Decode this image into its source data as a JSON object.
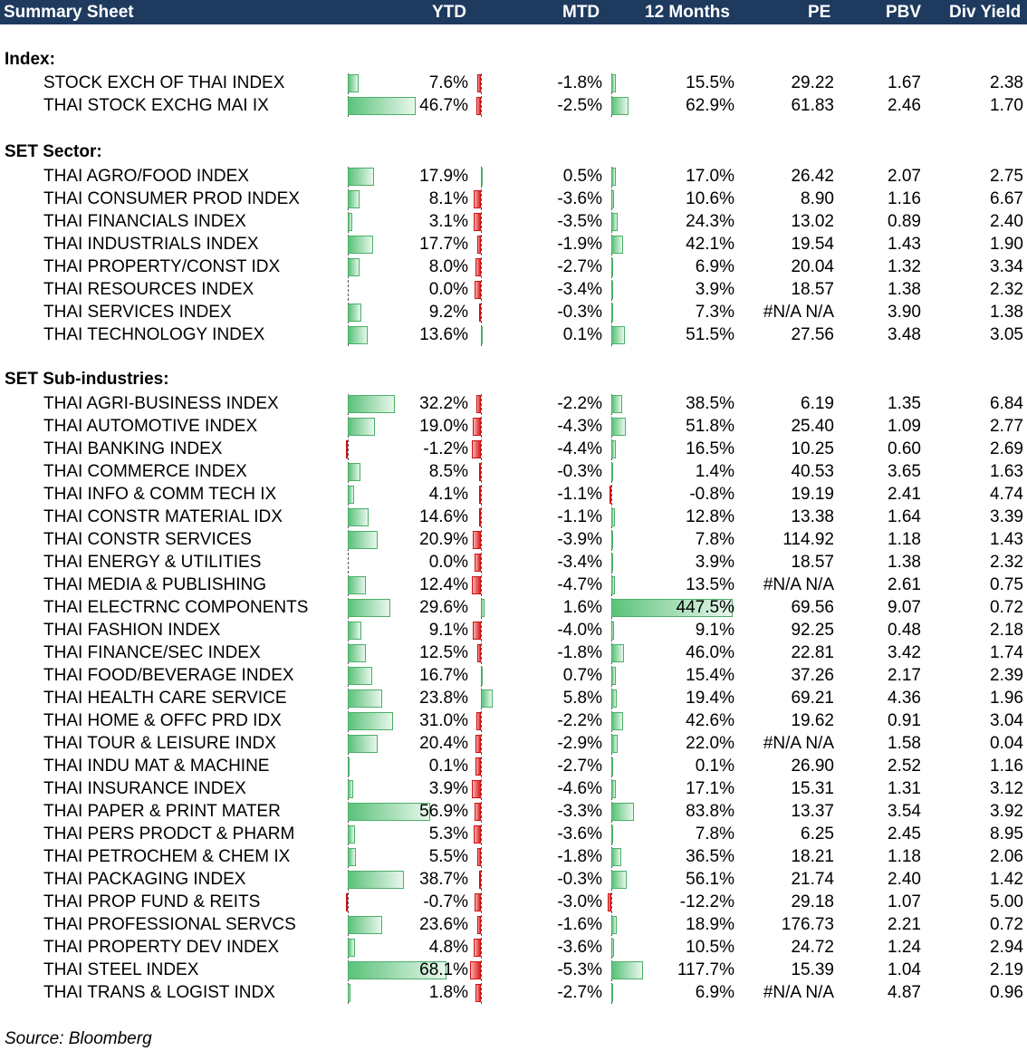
{
  "header": {
    "title": "Summary Sheet",
    "columns": [
      "YTD",
      "MTD",
      "12 Months",
      "PE",
      "PBV",
      "Div Yield"
    ]
  },
  "sections": [
    {
      "title": "Index:",
      "rows": [
        {
          "name": "STOCK EXCH OF THAI INDEX",
          "ytd": "7.6%",
          "mtd": "-1.8%",
          "m12": "15.5%",
          "pe": "29.22",
          "pbv": "1.67",
          "dy": "2.38"
        },
        {
          "name": "THAI STOCK EXCHG MAI IX",
          "ytd": "46.7%",
          "mtd": "-2.5%",
          "m12": "62.9%",
          "pe": "61.83",
          "pbv": "2.46",
          "dy": "1.70"
        }
      ]
    },
    {
      "title": "SET Sector:",
      "rows": [
        {
          "name": "THAI AGRO/FOOD INDEX",
          "ytd": "17.9%",
          "mtd": "0.5%",
          "m12": "17.0%",
          "pe": "26.42",
          "pbv": "2.07",
          "dy": "2.75"
        },
        {
          "name": "THAI CONSUMER PROD INDEX",
          "ytd": "8.1%",
          "mtd": "-3.6%",
          "m12": "10.6%",
          "pe": "8.90",
          "pbv": "1.16",
          "dy": "6.67"
        },
        {
          "name": "THAI FINANCIALS INDEX",
          "ytd": "3.1%",
          "mtd": "-3.5%",
          "m12": "24.3%",
          "pe": "13.02",
          "pbv": "0.89",
          "dy": "2.40"
        },
        {
          "name": "THAI INDUSTRIALS INDEX",
          "ytd": "17.7%",
          "mtd": "-1.9%",
          "m12": "42.1%",
          "pe": "19.54",
          "pbv": "1.43",
          "dy": "1.90"
        },
        {
          "name": "THAI PROPERTY/CONST IDX",
          "ytd": "8.0%",
          "mtd": "-2.7%",
          "m12": "6.9%",
          "pe": "20.04",
          "pbv": "1.32",
          "dy": "3.34"
        },
        {
          "name": "THAI RESOURCES INDEX",
          "ytd": "0.0%",
          "mtd": "-3.4%",
          "m12": "3.9%",
          "pe": "18.57",
          "pbv": "1.38",
          "dy": "2.32"
        },
        {
          "name": "THAI SERVICES INDEX",
          "ytd": "9.2%",
          "mtd": "-0.3%",
          "m12": "7.3%",
          "pe": "#N/A N/A",
          "pbv": "3.90",
          "dy": "1.38"
        },
        {
          "name": "THAI TECHNOLOGY INDEX",
          "ytd": "13.6%",
          "mtd": "0.1%",
          "m12": "51.5%",
          "pe": "27.56",
          "pbv": "3.48",
          "dy": "3.05"
        }
      ]
    },
    {
      "title": "SET Sub-industries:",
      "rows": [
        {
          "name": "THAI AGRI-BUSINESS INDEX",
          "ytd": "32.2%",
          "mtd": "-2.2%",
          "m12": "38.5%",
          "pe": "6.19",
          "pbv": "1.35",
          "dy": "6.84"
        },
        {
          "name": "THAI AUTOMOTIVE INDEX",
          "ytd": "19.0%",
          "mtd": "-4.3%",
          "m12": "51.8%",
          "pe": "25.40",
          "pbv": "1.09",
          "dy": "2.77"
        },
        {
          "name": "THAI BANKING INDEX",
          "ytd": "-1.2%",
          "mtd": "-4.4%",
          "m12": "16.5%",
          "pe": "10.25",
          "pbv": "0.60",
          "dy": "2.69"
        },
        {
          "name": "THAI COMMERCE INDEX",
          "ytd": "8.5%",
          "mtd": "-0.3%",
          "m12": "1.4%",
          "pe": "40.53",
          "pbv": "3.65",
          "dy": "1.63"
        },
        {
          "name": "THAI INFO & COMM TECH IX",
          "ytd": "4.1%",
          "mtd": "-1.1%",
          "m12": "-0.8%",
          "pe": "19.19",
          "pbv": "2.41",
          "dy": "4.74"
        },
        {
          "name": "THAI CONSTR MATERIAL IDX",
          "ytd": "14.6%",
          "mtd": "-1.1%",
          "m12": "12.8%",
          "pe": "13.38",
          "pbv": "1.64",
          "dy": "3.39"
        },
        {
          "name": "THAI CONSTR SERVICES",
          "ytd": "20.9%",
          "mtd": "-3.9%",
          "m12": "7.8%",
          "pe": "114.92",
          "pbv": "1.18",
          "dy": "1.43"
        },
        {
          "name": "THAI ENERGY & UTILITIES",
          "ytd": "0.0%",
          "mtd": "-3.4%",
          "m12": "3.9%",
          "pe": "18.57",
          "pbv": "1.38",
          "dy": "2.32"
        },
        {
          "name": "THAI MEDIA & PUBLISHING",
          "ytd": "12.4%",
          "mtd": "-4.7%",
          "m12": "13.5%",
          "pe": "#N/A N/A",
          "pbv": "2.61",
          "dy": "0.75"
        },
        {
          "name": "THAI ELECTRNC COMPONENTS",
          "ytd": "29.6%",
          "mtd": "1.6%",
          "m12": "447.5%",
          "pe": "69.56",
          "pbv": "9.07",
          "dy": "0.72"
        },
        {
          "name": "THAI FASHION INDEX",
          "ytd": "9.1%",
          "mtd": "-4.0%",
          "m12": "9.1%",
          "pe": "92.25",
          "pbv": "0.48",
          "dy": "2.18"
        },
        {
          "name": "THAI FINANCE/SEC INDEX",
          "ytd": "12.5%",
          "mtd": "-1.8%",
          "m12": "46.0%",
          "pe": "22.81",
          "pbv": "3.42",
          "dy": "1.74"
        },
        {
          "name": "THAI FOOD/BEVERAGE INDEX",
          "ytd": "16.7%",
          "mtd": "0.7%",
          "m12": "15.4%",
          "pe": "37.26",
          "pbv": "2.17",
          "dy": "2.39"
        },
        {
          "name": "THAI HEALTH CARE SERVICE",
          "ytd": "23.8%",
          "mtd": "5.8%",
          "m12": "19.4%",
          "pe": "69.21",
          "pbv": "4.36",
          "dy": "1.96"
        },
        {
          "name": "THAI HOME & OFFC PRD IDX",
          "ytd": "31.0%",
          "mtd": "-2.2%",
          "m12": "42.6%",
          "pe": "19.62",
          "pbv": "0.91",
          "dy": "3.04"
        },
        {
          "name": "THAI TOUR & LEISURE INDX",
          "ytd": "20.4%",
          "mtd": "-2.9%",
          "m12": "22.0%",
          "pe": "#N/A N/A",
          "pbv": "1.58",
          "dy": "0.04"
        },
        {
          "name": "THAI INDU MAT & MACHINE",
          "ytd": "0.1%",
          "mtd": "-2.7%",
          "m12": "0.1%",
          "pe": "26.90",
          "pbv": "2.52",
          "dy": "1.16"
        },
        {
          "name": "THAI INSURANCE INDEX",
          "ytd": "3.9%",
          "mtd": "-4.6%",
          "m12": "17.1%",
          "pe": "15.31",
          "pbv": "1.31",
          "dy": "3.12"
        },
        {
          "name": "THAI PAPER & PRINT MATER",
          "ytd": "56.9%",
          "mtd": "-3.3%",
          "m12": "83.8%",
          "pe": "13.37",
          "pbv": "3.54",
          "dy": "3.92"
        },
        {
          "name": "THAI PERS PRODCT & PHARM",
          "ytd": "5.3%",
          "mtd": "-3.6%",
          "m12": "7.8%",
          "pe": "6.25",
          "pbv": "2.45",
          "dy": "8.95"
        },
        {
          "name": "THAI PETROCHEM & CHEM IX",
          "ytd": "5.5%",
          "mtd": "-1.8%",
          "m12": "36.5%",
          "pe": "18.21",
          "pbv": "1.18",
          "dy": "2.06"
        },
        {
          "name": "THAI PACKAGING INDEX",
          "ytd": "38.7%",
          "mtd": "-0.3%",
          "m12": "56.1%",
          "pe": "21.74",
          "pbv": "2.40",
          "dy": "1.42"
        },
        {
          "name": "THAI PROP FUND & REITS",
          "ytd": "-0.7%",
          "mtd": "-3.0%",
          "m12": "-12.2%",
          "pe": "29.18",
          "pbv": "1.07",
          "dy": "5.00"
        },
        {
          "name": "THAI PROFESSIONAL SERVCS",
          "ytd": "23.6%",
          "mtd": "-1.6%",
          "m12": "18.9%",
          "pe": "176.73",
          "pbv": "2.21",
          "dy": "0.72"
        },
        {
          "name": "THAI PROPERTY DEV INDEX",
          "ytd": "4.8%",
          "mtd": "-3.6%",
          "m12": "10.5%",
          "pe": "24.72",
          "pbv": "1.24",
          "dy": "2.94"
        },
        {
          "name": "THAI STEEL INDEX",
          "ytd": "68.1%",
          "mtd": "-5.3%",
          "m12": "117.7%",
          "pe": "15.39",
          "pbv": "1.04",
          "dy": "2.19"
        },
        {
          "name": "THAI TRANS & LOGIST INDX",
          "ytd": "1.8%",
          "mtd": "-2.7%",
          "m12": "6.9%",
          "pe": "#N/A N/A",
          "pbv": "4.87",
          "dy": "0.96"
        }
      ]
    }
  ],
  "source": "Source: Bloomberg",
  "colors": {
    "header_bg": "#1f3a5f",
    "positive_bar": "#5bc27a",
    "negative_bar": "#e02020"
  }
}
